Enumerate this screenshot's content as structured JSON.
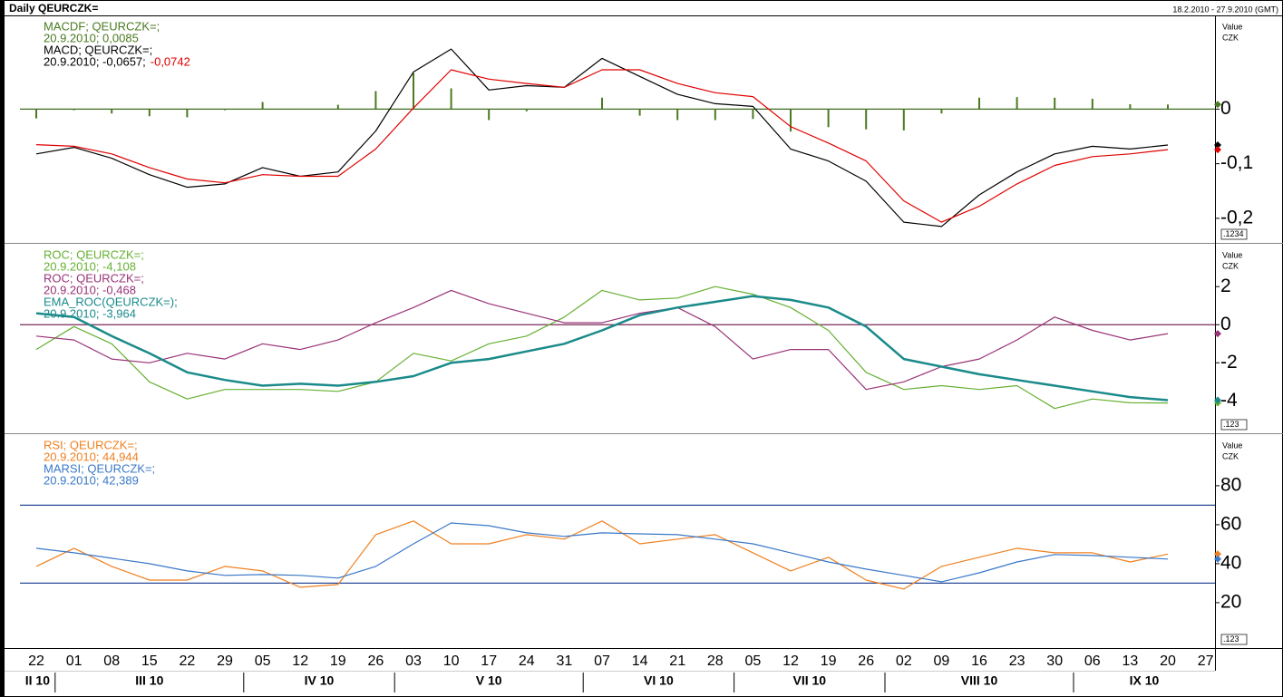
{
  "header": {
    "title": "Daily QEURCZK=",
    "range": "18.2.2010 - 27.9.2010 (GMT)"
  },
  "x_axis": {
    "categories": [
      "22",
      "01",
      "08",
      "15",
      "22",
      "29",
      "05",
      "12",
      "19",
      "26",
      "03",
      "10",
      "17",
      "24",
      "31",
      "07",
      "14",
      "21",
      "28",
      "05",
      "12",
      "19",
      "26",
      "02",
      "09",
      "16",
      "23",
      "30",
      "06",
      "13",
      "20",
      "27"
    ],
    "months": [
      "II 10",
      "III 10",
      "IV 10",
      "V 10",
      "VI 10",
      "VII 10",
      "VIII 10",
      "IX 10"
    ]
  },
  "chart_data": [
    {
      "type": "line",
      "unit_lines": [
        "Value",
        "CZK"
      ],
      "box_label": ".1234",
      "ylim": [
        -0.245,
        0.17
      ],
      "yticks": [
        0,
        {
          "value": -0.1,
          "label": "-0,1"
        },
        {
          "value": -0.2,
          "label": "-0,2"
        }
      ],
      "levels": [
        0
      ],
      "level_color": "#3d6b1e",
      "series": [
        {
          "name": "MACDF; QEURCZK=;",
          "label": "20.9.2010; 0,0085",
          "style": "bar",
          "color": "#4a7a20",
          "values": [
            -0.017,
            -0.002,
            -0.008,
            -0.013,
            -0.015,
            -0.002,
            0.013,
            0,
            0.008,
            0.033,
            0.066,
            0.038,
            -0.02,
            -0.004,
            0,
            0.021,
            -0.012,
            -0.02,
            -0.02,
            -0.018,
            -0.041,
            -0.033,
            -0.037,
            -0.039,
            -0.008,
            0.021,
            0.022,
            0.021,
            0.019,
            0.009,
            0.0085,
            null
          ]
        },
        {
          "name": "MACD; QEURCZK=;",
          "label": "20.9.2010; -0,0657;",
          "style": "line",
          "color": "#000000",
          "values": [
            -0.082,
            -0.07,
            -0.09,
            -0.12,
            -0.143,
            -0.137,
            -0.107,
            -0.123,
            -0.115,
            -0.04,
            0.068,
            0.11,
            0.035,
            0.043,
            0.04,
            0.093,
            0.06,
            0.027,
            0.01,
            0.005,
            -0.073,
            -0.095,
            -0.132,
            -0.207,
            -0.215,
            -0.157,
            -0.115,
            -0.082,
            -0.068,
            -0.073,
            -0.0657,
            null
          ]
        },
        {
          "label": "-0,0742",
          "style": "line",
          "color": "#e00000",
          "values": [
            -0.065,
            -0.068,
            -0.082,
            -0.107,
            -0.128,
            -0.135,
            -0.12,
            -0.123,
            -0.123,
            -0.073,
            0.002,
            0.072,
            0.055,
            0.047,
            0.04,
            0.072,
            0.072,
            0.047,
            0.03,
            0.023,
            -0.032,
            -0.062,
            -0.095,
            -0.168,
            -0.207,
            -0.178,
            -0.137,
            -0.103,
            -0.087,
            -0.082,
            -0.0742,
            null
          ]
        }
      ]
    },
    {
      "type": "line",
      "unit_lines": [
        "Value",
        "CZK"
      ],
      "box_label": ".123",
      "ylim": [
        -5.7,
        4.2
      ],
      "yticks": [
        2,
        0,
        -2,
        -4
      ],
      "levels": [
        0
      ],
      "level_color": "#7a2a5a",
      "series": [
        {
          "name": "ROC; QEURCZK=;",
          "label": "20.9.2010; -4,108",
          "style": "line",
          "color": "#66b032",
          "values": [
            -1.3,
            -0.1,
            -1.0,
            -3.0,
            -3.9,
            -3.4,
            -3.4,
            -3.4,
            -3.5,
            -3.0,
            -1.5,
            -1.9,
            -1.0,
            -0.6,
            0.4,
            1.8,
            1.3,
            1.4,
            2.0,
            1.6,
            0.9,
            -0.3,
            -2.5,
            -3.4,
            -3.2,
            -3.4,
            -3.2,
            -4.4,
            -3.9,
            -4.1,
            -4.108,
            null
          ]
        },
        {
          "name": "ROC; QEURCZK=;",
          "label": "20.9.2010; -0,468",
          "style": "line",
          "color": "#993377",
          "values": [
            -0.6,
            -0.8,
            -1.8,
            -2.0,
            -1.5,
            -1.8,
            -1.0,
            -1.3,
            -0.8,
            0.1,
            0.9,
            1.8,
            1.1,
            0.6,
            0.1,
            0.1,
            0.6,
            0.9,
            -0.1,
            -1.8,
            -1.3,
            -1.3,
            -3.4,
            -3.0,
            -2.2,
            -1.8,
            -0.8,
            0.4,
            -0.3,
            -0.8,
            -0.468,
            null
          ]
        },
        {
          "name": "EMA_ROC(QEURCZK=);",
          "label": "20.9.2010; -3,964",
          "style": "thick",
          "color": "#1a8a8a",
          "values": [
            0.6,
            0.4,
            -0.6,
            -1.5,
            -2.5,
            -2.9,
            -3.2,
            -3.1,
            -3.2,
            -3.0,
            -2.7,
            -2.0,
            -1.8,
            -1.4,
            -1.0,
            -0.3,
            0.5,
            0.9,
            1.2,
            1.5,
            1.3,
            0.9,
            -0.1,
            -1.8,
            -2.2,
            -2.6,
            -2.9,
            -3.2,
            -3.5,
            -3.8,
            -3.964,
            null
          ]
        }
      ]
    },
    {
      "type": "line",
      "unit_lines": [
        "Value",
        "CZK"
      ],
      "box_label": ".123",
      "ylim": [
        -3.3,
        106
      ],
      "yticks": [
        80,
        60,
        40,
        20
      ],
      "levels": [
        70,
        30
      ],
      "level_color": "#2a4a9a",
      "series": [
        {
          "name": "RSI; QEURCZK=;",
          "label": "20.9.2010; 44,944",
          "style": "line",
          "color": "#f08020",
          "values": [
            38.6,
            47.9,
            38.6,
            31.6,
            31.6,
            38.6,
            36.3,
            27.9,
            29.3,
            54.9,
            61.9,
            50.2,
            50.2,
            54.9,
            52.6,
            61.9,
            50.2,
            52.6,
            54.9,
            45.6,
            36.3,
            43.3,
            31.6,
            27,
            38.6,
            43.3,
            47.9,
            45.6,
            45.6,
            40.9,
            44.944,
            null
          ]
        },
        {
          "name": "MARSI; QEURCZK=;",
          "label": "20.9.2010; 42,389",
          "style": "line",
          "color": "#3a78c8",
          "values": [
            47.9,
            45.6,
            42.8,
            40,
            36.3,
            34,
            34.4,
            34,
            32.6,
            38.6,
            50.2,
            60.9,
            59.5,
            55.8,
            54,
            55.8,
            55.3,
            54.9,
            52.6,
            50.2,
            45.6,
            40.9,
            37.2,
            34,
            30.7,
            35.3,
            40.9,
            44.7,
            44.2,
            43.3,
            42.389,
            null
          ]
        }
      ]
    }
  ]
}
